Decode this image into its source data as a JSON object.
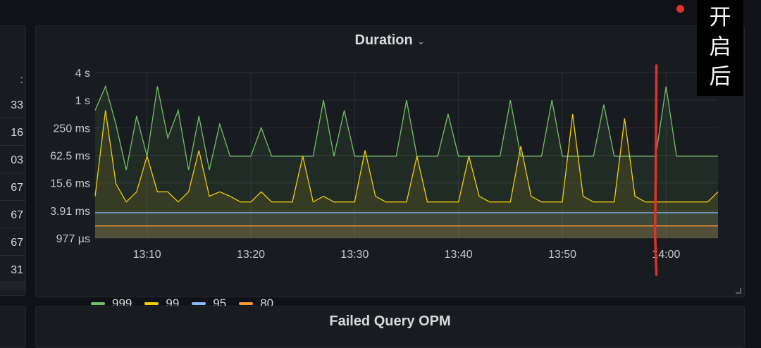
{
  "left_panel": {
    "values": [
      "33",
      "16",
      "03",
      "67",
      "67",
      "67",
      "31"
    ],
    "top_glyph": ":"
  },
  "main_panel": {
    "title": "Duration",
    "title_chevron": "chevron-down-icon"
  },
  "bottom_panel": {
    "title": "Failed Query OPM"
  },
  "annotation": {
    "text": "开启后",
    "marker_color": "#e0312a"
  },
  "colors": {
    "background": "#111217",
    "panel": "#181b1f",
    "s999": "#73bf69",
    "s99": "#f2cc0c",
    "s95": "#8ab8ff",
    "s80": "#ff9830",
    "grid": "#2c2f35"
  },
  "chart_data": {
    "type": "area",
    "title": "Duration",
    "y_scale": "log",
    "y_ticks": [
      "4 s",
      "1 s",
      "250 ms",
      "62.5 ms",
      "15.6 ms",
      "3.91 ms",
      "977 µs"
    ],
    "y_tick_values_ms": [
      4000,
      1000,
      250,
      62.5,
      15.6,
      3.91,
      0.977
    ],
    "x_ticks": [
      "13:10",
      "13:20",
      "13:30",
      "13:40",
      "13:50",
      "14:00"
    ],
    "x_range": [
      "13:05",
      "14:05"
    ],
    "grid": true,
    "legend_placement": "bottom-left",
    "annotation_time": "13:59",
    "series": [
      {
        "name": "999",
        "color": "#73bf69",
        "times": [
          "13:05",
          "13:06",
          "13:07",
          "13:08",
          "13:09",
          "13:10",
          "13:11",
          "13:12",
          "13:13",
          "13:14",
          "13:15",
          "13:16",
          "13:17",
          "13:18",
          "13:19",
          "13:20",
          "13:21",
          "13:22",
          "13:23",
          "13:24",
          "13:25",
          "13:26",
          "13:27",
          "13:28",
          "13:29",
          "13:30",
          "13:31",
          "13:32",
          "13:33",
          "13:34",
          "13:35",
          "13:36",
          "13:37",
          "13:38",
          "13:39",
          "13:40",
          "13:41",
          "13:42",
          "13:43",
          "13:44",
          "13:45",
          "13:46",
          "13:47",
          "13:48",
          "13:49",
          "13:50",
          "13:51",
          "13:52",
          "13:53",
          "13:54",
          "13:55",
          "13:56",
          "13:57",
          "13:58",
          "13:59",
          "14:00",
          "14:01",
          "14:02",
          "14:03",
          "14:04",
          "14:05"
        ],
        "values_ms": [
          600,
          2000,
          300,
          30,
          450,
          60,
          2000,
          150,
          600,
          30,
          450,
          30,
          300,
          60,
          60,
          60,
          250,
          60,
          60,
          60,
          60,
          60,
          1000,
          60,
          600,
          60,
          60,
          60,
          60,
          60,
          1000,
          60,
          60,
          60,
          500,
          60,
          60,
          60,
          60,
          60,
          1000,
          60,
          60,
          60,
          1000,
          60,
          60,
          60,
          60,
          800,
          60,
          60,
          60,
          60,
          60,
          2000,
          60,
          60,
          60,
          60,
          60
        ]
      },
      {
        "name": "99",
        "color": "#f2cc0c",
        "times": [
          "13:05",
          "13:06",
          "13:07",
          "13:08",
          "13:09",
          "13:10",
          "13:11",
          "13:12",
          "13:13",
          "13:14",
          "13:15",
          "13:16",
          "13:17",
          "13:18",
          "13:19",
          "13:20",
          "13:21",
          "13:22",
          "13:23",
          "13:24",
          "13:25",
          "13:26",
          "13:27",
          "13:28",
          "13:29",
          "13:30",
          "13:31",
          "13:32",
          "13:33",
          "13:34",
          "13:35",
          "13:36",
          "13:37",
          "13:38",
          "13:39",
          "13:40",
          "13:41",
          "13:42",
          "13:43",
          "13:44",
          "13:45",
          "13:46",
          "13:47",
          "13:48",
          "13:49",
          "13:50",
          "13:51",
          "13:52",
          "13:53",
          "13:54",
          "13:55",
          "13:56",
          "13:57",
          "13:58",
          "13:59",
          "14:00",
          "14:01",
          "14:02",
          "14:03",
          "14:04",
          "14:05"
        ],
        "values_ms": [
          8,
          600,
          15,
          6,
          10,
          60,
          10,
          10,
          6,
          10,
          80,
          8,
          10,
          8,
          6,
          6,
          10,
          6,
          6,
          6,
          60,
          6,
          8,
          6,
          6,
          6,
          80,
          8,
          6,
          6,
          6,
          60,
          6,
          6,
          6,
          6,
          60,
          8,
          6,
          6,
          6,
          100,
          8,
          6,
          6,
          6,
          500,
          8,
          6,
          6,
          6,
          400,
          8,
          6,
          6,
          6,
          6,
          6,
          6,
          6,
          10
        ]
      },
      {
        "name": "95",
        "color": "#8ab8ff",
        "times": [
          "13:05",
          "13:15",
          "13:25",
          "13:35",
          "13:45",
          "13:55",
          "14:05"
        ],
        "values_ms": [
          3.5,
          3.5,
          3.5,
          3.5,
          3.5,
          3.5,
          3.5
        ]
      },
      {
        "name": "80",
        "color": "#ff9830",
        "times": [
          "13:05",
          "13:15",
          "13:25",
          "13:35",
          "13:45",
          "13:55",
          "14:05"
        ],
        "values_ms": [
          1.8,
          1.8,
          1.8,
          1.8,
          1.8,
          1.8,
          1.8
        ]
      }
    ]
  }
}
